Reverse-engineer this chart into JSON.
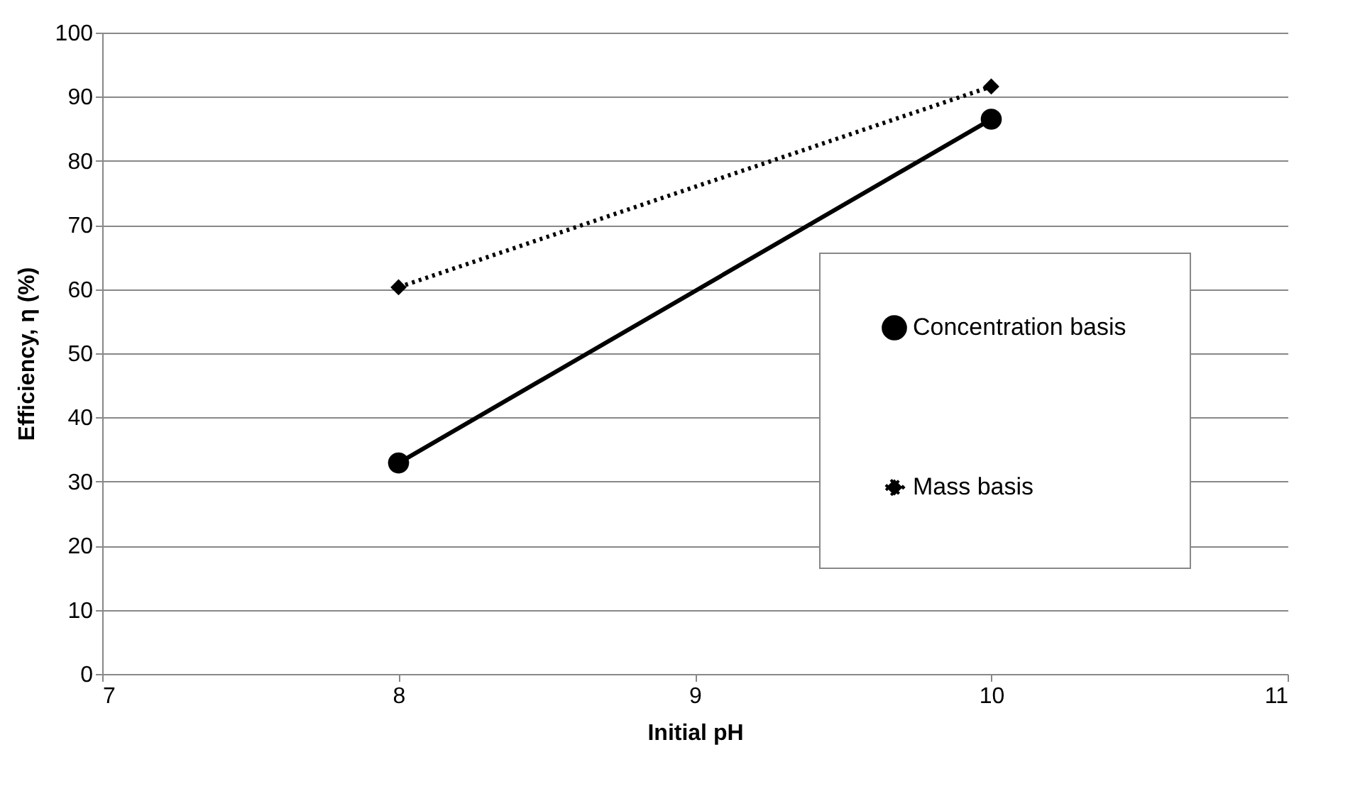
{
  "chart_data": {
    "type": "line",
    "xlabel": "Initial pH",
    "ylabel": "Efficiency, η (%)",
    "x": [
      8,
      10
    ],
    "series": [
      {
        "name": "Concentration basis",
        "color": "#000000",
        "values": [
          32.9,
          86.5
        ],
        "marker": "circle",
        "line_style": "solid"
      },
      {
        "name": "Mass basis",
        "color": "#000000",
        "values": [
          60.3,
          91.6
        ],
        "marker": "diamond",
        "line_style": "dotted"
      }
    ],
    "xlim": [
      7,
      11
    ],
    "xticks": [
      7,
      8,
      9,
      10,
      11
    ],
    "ylim": [
      0,
      100
    ],
    "yticks": [
      0,
      10,
      20,
      30,
      40,
      50,
      60,
      70,
      80,
      90,
      100
    ],
    "grid": "y",
    "legend": "right"
  }
}
